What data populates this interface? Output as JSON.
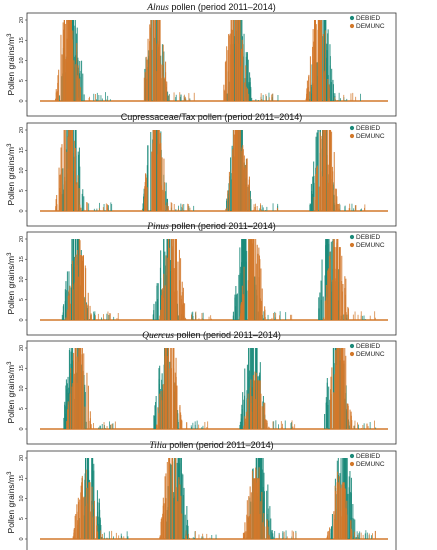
{
  "figure": {
    "series_colors": {
      "DEBIED": "#1b8a7a",
      "DEMUNC": "#d2782b"
    },
    "legend": [
      "DEBIED",
      "DEMUNC"
    ],
    "ylabel": "Pollen grains/m",
    "ylabel_sup": "3",
    "yticks": [
      "0",
      "5",
      "10",
      "15",
      "20"
    ],
    "panels": [
      {
        "title_italic": "Alnus",
        "title_rest": " pollen (period 2011–2014)"
      },
      {
        "title_italic": "",
        "title_rest": "Cupressaceae/Tax pollen (period 2011–2014)"
      },
      {
        "title_italic": "Pinus",
        "title_rest": " pollen (period 2011–2014)"
      },
      {
        "title_italic": "Quercus",
        "title_rest": " pollen (period 2011–2014)"
      },
      {
        "title_italic": "Tilia",
        "title_rest": " pollen (period 2011–2014)"
      }
    ]
  },
  "chart_data": [
    {
      "type": "bar",
      "title": "Alnus pollen (period 2011–2014)",
      "ylabel": "Pollen grains/m3",
      "ylim": [
        0,
        20
      ],
      "legend_position": "top-right",
      "series": [
        {
          "name": "DEBIED",
          "season_peaks_x": [
            0.09,
            0.33,
            0.57,
            0.81
          ],
          "peak_values": [
            20,
            20,
            20,
            20
          ]
        },
        {
          "name": "DEMUNC",
          "season_peaks_x": [
            0.08,
            0.33,
            0.56,
            0.8
          ],
          "peak_values": [
            20,
            20,
            20,
            20
          ]
        }
      ]
    },
    {
      "type": "bar",
      "title": "Cupressaceae/Tax pollen (period 2011–2014)",
      "ylabel": "Pollen grains/m3",
      "ylim": [
        0,
        20
      ],
      "legend_position": "top-right",
      "series": [
        {
          "name": "DEBIED",
          "season_peaks_x": [
            0.09,
            0.33,
            0.57,
            0.81
          ],
          "peak_values": [
            20,
            20,
            20,
            20
          ]
        },
        {
          "name": "DEMUNC",
          "season_peaks_x": [
            0.08,
            0.33,
            0.57,
            0.82
          ],
          "peak_values": [
            20,
            20,
            20,
            20
          ]
        }
      ]
    },
    {
      "type": "bar",
      "title": "Pinus pollen (period 2011–2014)",
      "ylabel": "Pollen grains/m3",
      "ylim": [
        0,
        20
      ],
      "legend_position": "top-right",
      "series": [
        {
          "name": "DEBIED",
          "season_peaks_x": [
            0.1,
            0.36,
            0.59,
            0.83
          ],
          "peak_values": [
            20,
            20,
            20,
            20
          ]
        },
        {
          "name": "DEMUNC",
          "season_peaks_x": [
            0.11,
            0.38,
            0.61,
            0.85
          ],
          "peak_values": [
            16,
            20,
            20,
            18
          ]
        }
      ]
    },
    {
      "type": "bar",
      "title": "Quercus pollen (period 2011–2014)",
      "ylabel": "Pollen grains/m3",
      "ylim": [
        0,
        20
      ],
      "legend_position": "top-right",
      "series": [
        {
          "name": "DEBIED",
          "season_peaks_x": [
            0.1,
            0.36,
            0.61,
            0.85
          ],
          "peak_values": [
            20,
            20,
            20,
            20
          ]
        },
        {
          "name": "DEMUNC",
          "season_peaks_x": [
            0.11,
            0.37,
            0.62,
            0.86
          ],
          "peak_values": [
            20,
            20,
            12,
            20
          ]
        }
      ]
    },
    {
      "type": "bar",
      "title": "Tilia pollen (period 2011–2014)",
      "ylabel": "Pollen grains/m3",
      "ylim": [
        0,
        20
      ],
      "legend_position": "top-right",
      "series": [
        {
          "name": "DEBIED",
          "season_peaks_x": [
            0.14,
            0.39,
            0.63,
            0.87
          ],
          "peak_values": [
            20,
            20,
            20,
            20
          ]
        },
        {
          "name": "DEMUNC",
          "season_peaks_x": [
            0.13,
            0.38,
            0.62,
            0.86
          ],
          "peak_values": [
            14,
            20,
            15,
            14
          ]
        }
      ]
    }
  ]
}
